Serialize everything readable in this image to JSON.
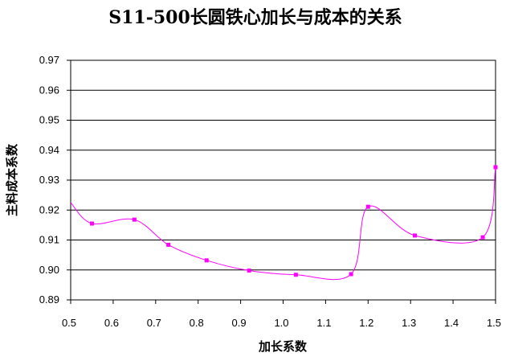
{
  "chart_data": {
    "type": "line",
    "title": "S11-500长圆铁心加长与成本的关系",
    "xlabel": "加长系数",
    "ylabel": "主料成本系数",
    "xlim": [
      0.5,
      1.5
    ],
    "ylim": [
      0.89,
      0.97
    ],
    "x_ticks": [
      "0.5",
      "0.6",
      "0.7",
      "0.8",
      "0.9",
      "1.0",
      "1.1",
      "1.2",
      "1.3",
      "1.4",
      "1.5"
    ],
    "y_ticks": [
      "0.97",
      "0.96",
      "0.95",
      "0.94",
      "0.93",
      "0.92",
      "0.91",
      "0.90",
      "0.89"
    ],
    "grid": true,
    "smooth": true,
    "line_color": "#ff00ff",
    "marker_color": "#ff00ff",
    "series": [
      {
        "x": [
          0.5,
          0.55,
          0.65,
          0.73,
          0.82,
          0.92,
          1.03,
          1.16,
          1.2,
          1.31,
          1.47,
          1.5
        ],
        "y": [
          0.9225,
          0.9155,
          0.9168,
          0.9084,
          0.9032,
          0.8998,
          0.8984,
          0.8986,
          0.9211,
          0.9115,
          0.9109,
          0.9343
        ],
        "markers": [
          false,
          true,
          true,
          true,
          true,
          true,
          true,
          true,
          true,
          true,
          true,
          true
        ]
      }
    ]
  }
}
